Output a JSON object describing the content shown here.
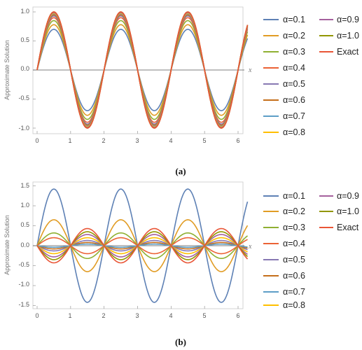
{
  "chart_data": [
    {
      "type": "line",
      "caption": "(a)",
      "ylabel": "Approximate Solution",
      "xlabel": "x",
      "xlim": [
        0,
        6.283
      ],
      "ylim": [
        -1.05,
        1.05
      ],
      "xticks": [
        "0",
        "1",
        "2",
        "3",
        "4",
        "5",
        "6"
      ],
      "yticks": [
        "-1.0",
        "-0.5",
        "0.0",
        "0.5",
        "1.0"
      ],
      "ytick_values": [
        -1.0,
        -0.5,
        0.0,
        0.5,
        1.0
      ],
      "legend": {
        "placement": "right",
        "columns": 2
      },
      "series": [
        {
          "name": "α=0.1",
          "color": "#5e81b5",
          "amplitude": 0.7
        },
        {
          "name": "α=0.2",
          "color": "#e19c24",
          "amplitude": 0.78
        },
        {
          "name": "α=0.3",
          "color": "#8fb032",
          "amplitude": 0.85
        },
        {
          "name": "α=0.4",
          "color": "#eb6235",
          "amplitude": 0.9
        },
        {
          "name": "α=0.5",
          "color": "#8778b3",
          "amplitude": 0.93
        },
        {
          "name": "α=0.6",
          "color": "#c56e1a",
          "amplitude": 0.95
        },
        {
          "name": "α=0.7",
          "color": "#5d9ec7",
          "amplitude": 0.97
        },
        {
          "name": "α=0.8",
          "color": "#ffbf00",
          "amplitude": 0.98
        },
        {
          "name": "α=0.9",
          "color": "#a5609d",
          "amplitude": 0.99
        },
        {
          "name": "α=1.0",
          "color": "#929600",
          "amplitude": 1.0
        },
        {
          "name": "Exact",
          "color": "#e95536",
          "amplitude": 1.0
        }
      ]
    },
    {
      "type": "line",
      "caption": "(b)",
      "ylabel": "Approximate Solution",
      "xlabel": "x",
      "xlim": [
        0,
        6.283
      ],
      "ylim": [
        -1.55,
        1.55
      ],
      "xticks": [
        "0",
        "1",
        "2",
        "3",
        "4",
        "5",
        "6"
      ],
      "yticks": [
        "-1.5",
        "-1.0",
        "-0.5",
        "0.0",
        "0.5",
        "1.0",
        "1.5"
      ],
      "ytick_values": [
        -1.5,
        -1.0,
        -0.5,
        0.0,
        0.5,
        1.0,
        1.5
      ],
      "legend": {
        "placement": "right",
        "columns": 2
      },
      "series": [
        {
          "name": "α=0.1",
          "color": "#5e81b5",
          "amplitude": 1.42,
          "sign": 1
        },
        {
          "name": "α=0.2",
          "color": "#e19c24",
          "amplitude": 0.65,
          "sign": 1
        },
        {
          "name": "α=0.3",
          "color": "#8fb032",
          "amplitude": 0.32,
          "sign": 1
        },
        {
          "name": "α=0.4",
          "color": "#eb6235",
          "amplitude": 0.2,
          "sign": 1
        },
        {
          "name": "α=0.5",
          "color": "#8778b3",
          "amplitude": 0.13,
          "sign": -1
        },
        {
          "name": "α=0.6",
          "color": "#c56e1a",
          "amplitude": 0.08,
          "sign": -1
        },
        {
          "name": "α=0.7",
          "color": "#5d9ec7",
          "amplitude": 0.04,
          "sign": -1
        },
        {
          "name": "α=0.8",
          "color": "#ffbf00",
          "amplitude": 0.2,
          "sign": -1
        },
        {
          "name": "α=0.9",
          "color": "#a5609d",
          "amplitude": 0.28,
          "sign": -1
        },
        {
          "name": "α=1.0",
          "color": "#929600",
          "amplitude": 0.35,
          "sign": -1
        },
        {
          "name": "Exact",
          "color": "#e95536",
          "amplitude": 0.43,
          "sign": -1
        }
      ]
    }
  ]
}
